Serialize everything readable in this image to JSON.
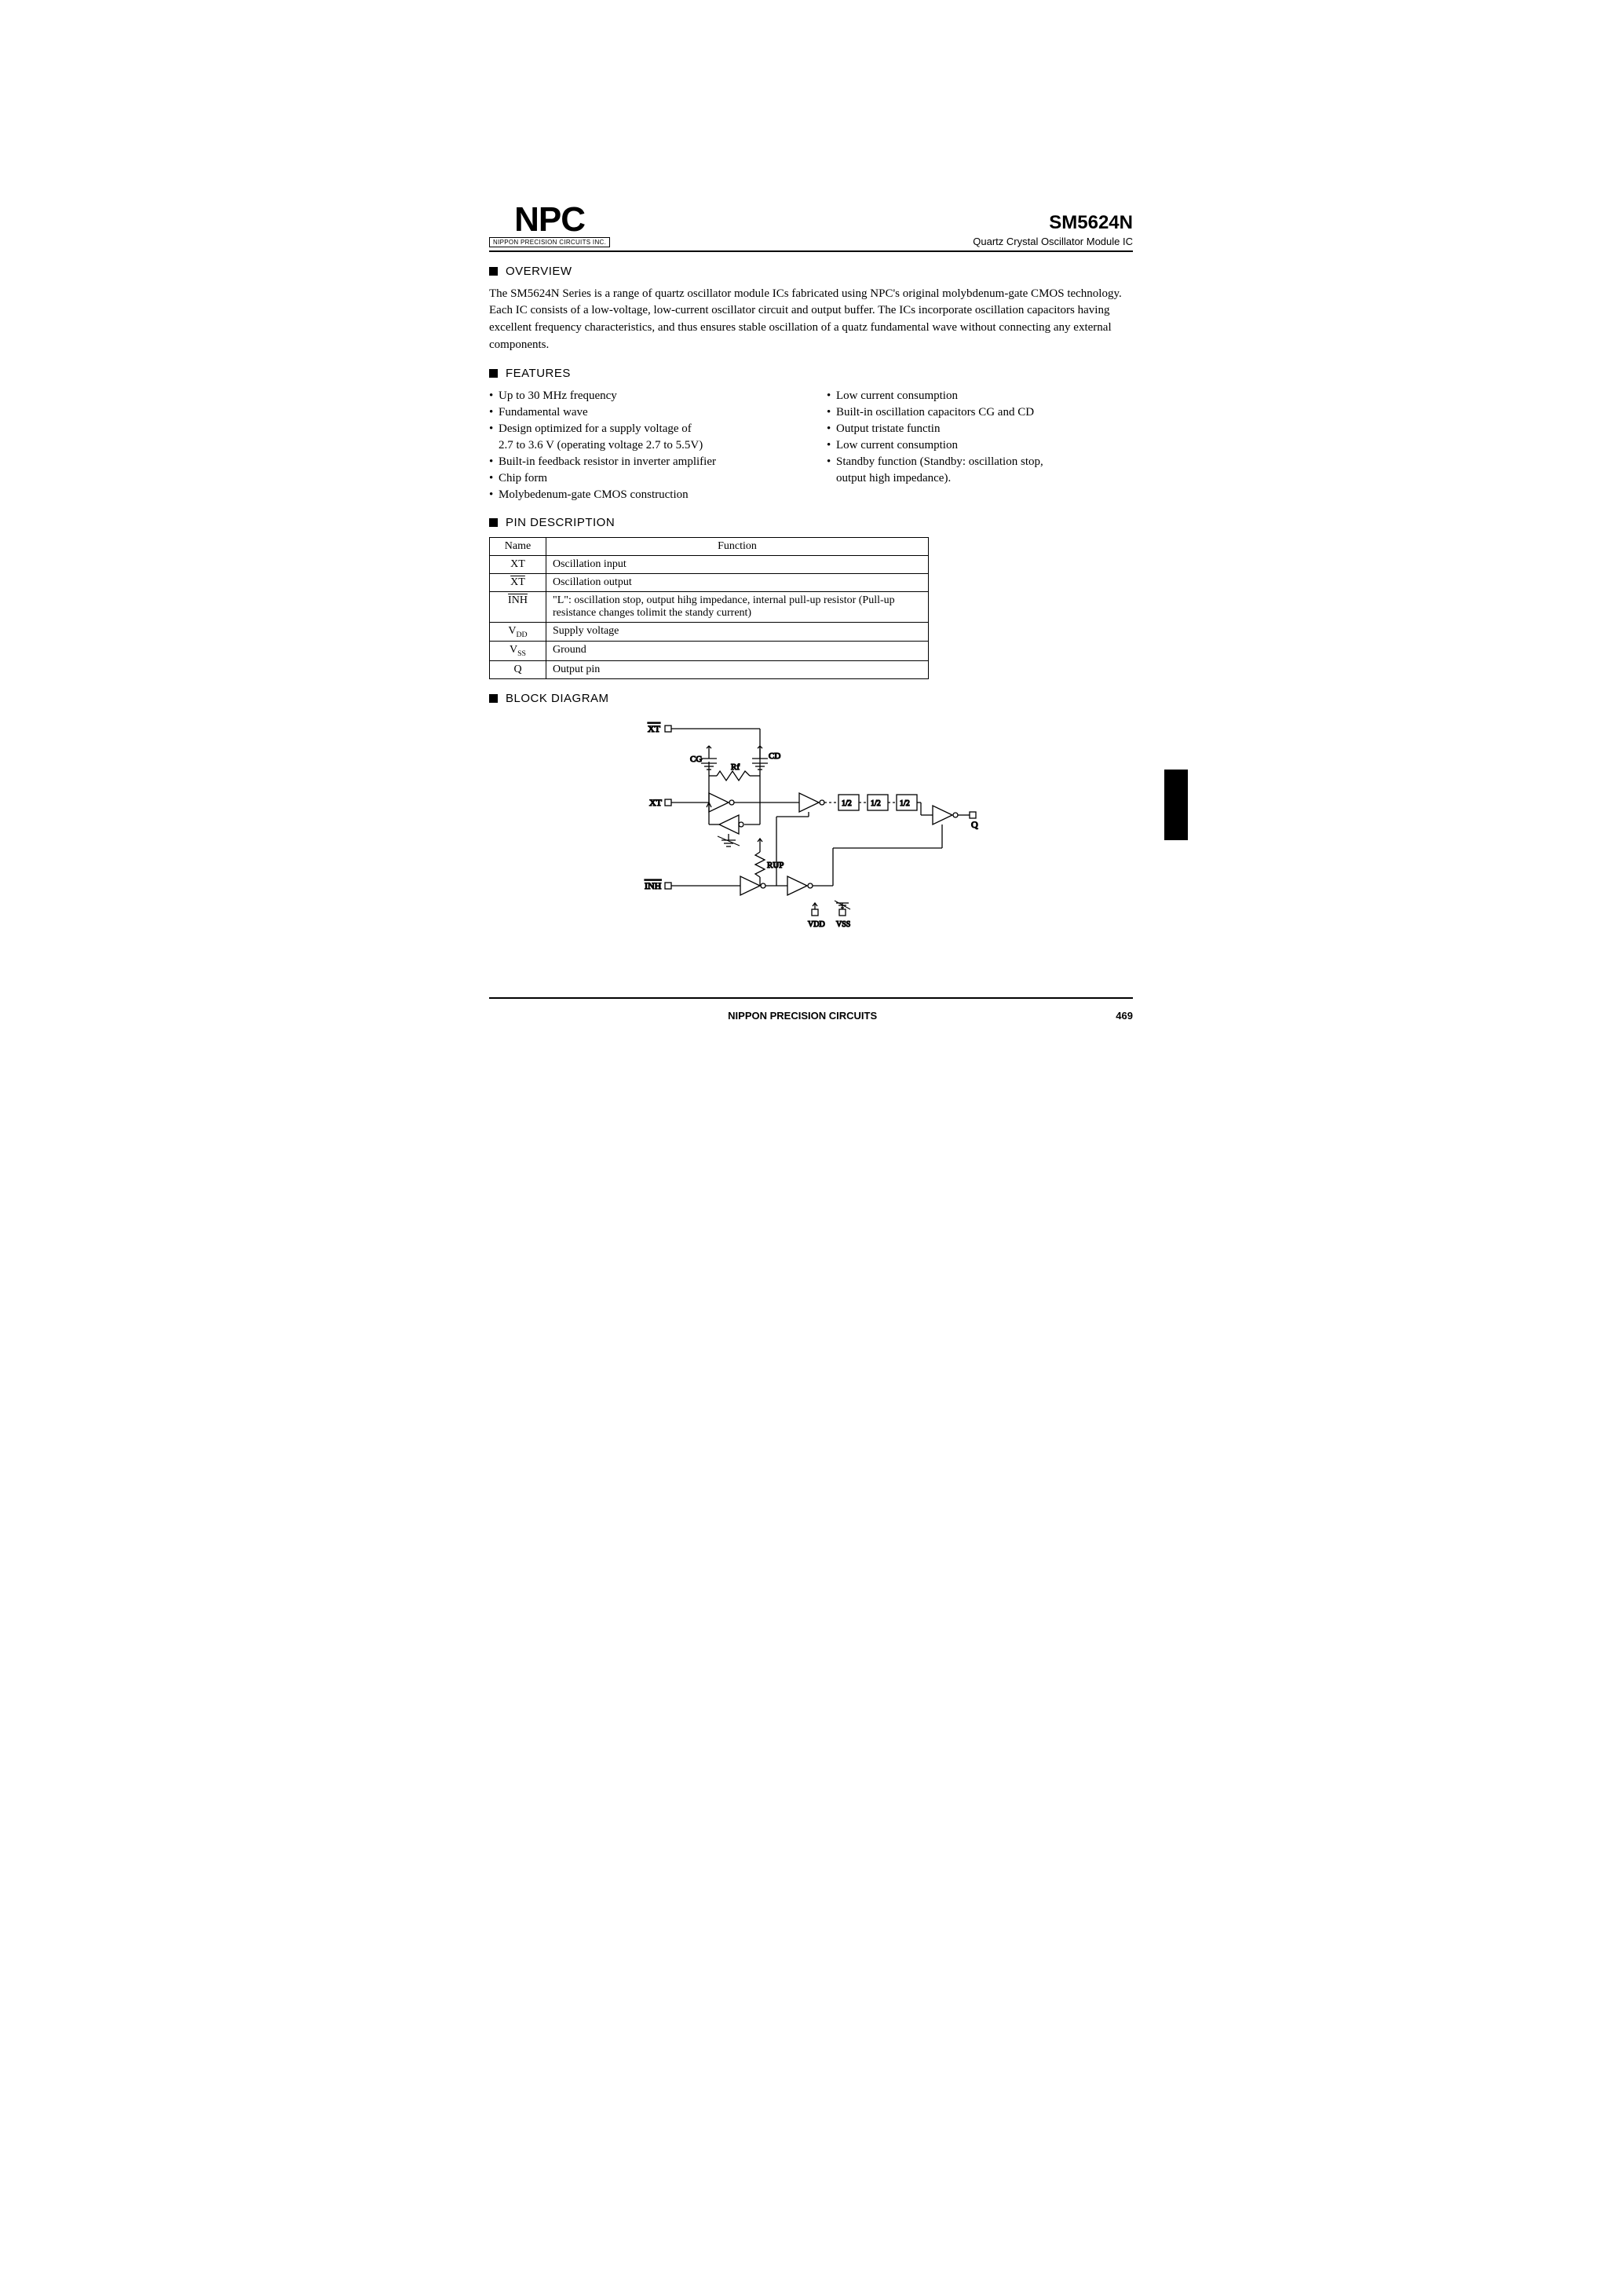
{
  "logo": {
    "big": "NPC",
    "sub": "NIPPON PRECISION CIRCUITS INC."
  },
  "header": {
    "part": "SM5624N",
    "subtitle": "Quartz Crystal Oscillator Module IC"
  },
  "sections": {
    "overview": "OVERVIEW",
    "features": "FEATURES",
    "pindesc": "PIN DESCRIPTION",
    "block": "BLOCK DIAGRAM"
  },
  "overview_text": "The SM5624N Series is a range of quartz oscillator module ICs fabricated using NPC's original molybdenum-gate CMOS technology.  Each IC consists of a low-voltage, low-current oscillator circuit and output buffer.  The ICs incorporate oscillation capacitors having excellent frequency characteristics, and thus ensures stable oscillation of a quatz fundamental wave without connecting any external components.",
  "features": {
    "left": [
      "Up to 30 MHz frequency",
      "Fundamental wave",
      "Design optimized for a supply voltage of",
      "2.7 to 3.6 V (operating voltage 2.7 to 5.5V)",
      "Built-in feedback resistor in inverter amplifier",
      "Chip form",
      "Molybedenum-gate CMOS construction"
    ],
    "left_cont_idx": [
      3
    ],
    "right": [
      "Low current consumption",
      "Built-in oscillation capacitors CG and CD",
      "Output tristate functin",
      "Low current consumption",
      "Standby function (Standby: oscillation stop,",
      "output high impedance)."
    ],
    "right_cont_idx": [
      5
    ]
  },
  "pins": {
    "headers": [
      "Name",
      "Function"
    ],
    "rows": [
      {
        "name": "XT",
        "func": "Oscillation input"
      },
      {
        "name_over": "XT",
        "func": "Oscillation output"
      },
      {
        "name_over": "INH",
        "func": "\"L\": oscillation stop, output hihg impedance, internal pull-up resistor (Pull-up resistance changes tolimit the standy current)"
      },
      {
        "name_html": "V<sub>DD</sub>",
        "func": "Supply voltage"
      },
      {
        "name_html": "V<sub>SS</sub>",
        "func": "Ground"
      },
      {
        "name": "Q",
        "func": "Output pin"
      }
    ]
  },
  "diagram": {
    "labels": {
      "xtbar": "XT",
      "cg": "CG",
      "cd": "CD",
      "rf": "Rf",
      "xt": "XT",
      "div": "1/2",
      "q": "Q",
      "rup": "RUP",
      "inh": "INH",
      "vdd": "VDD",
      "vss": "VSS"
    }
  },
  "footer": {
    "company": "NIPPON PRECISION CIRCUITS",
    "page": "469"
  }
}
